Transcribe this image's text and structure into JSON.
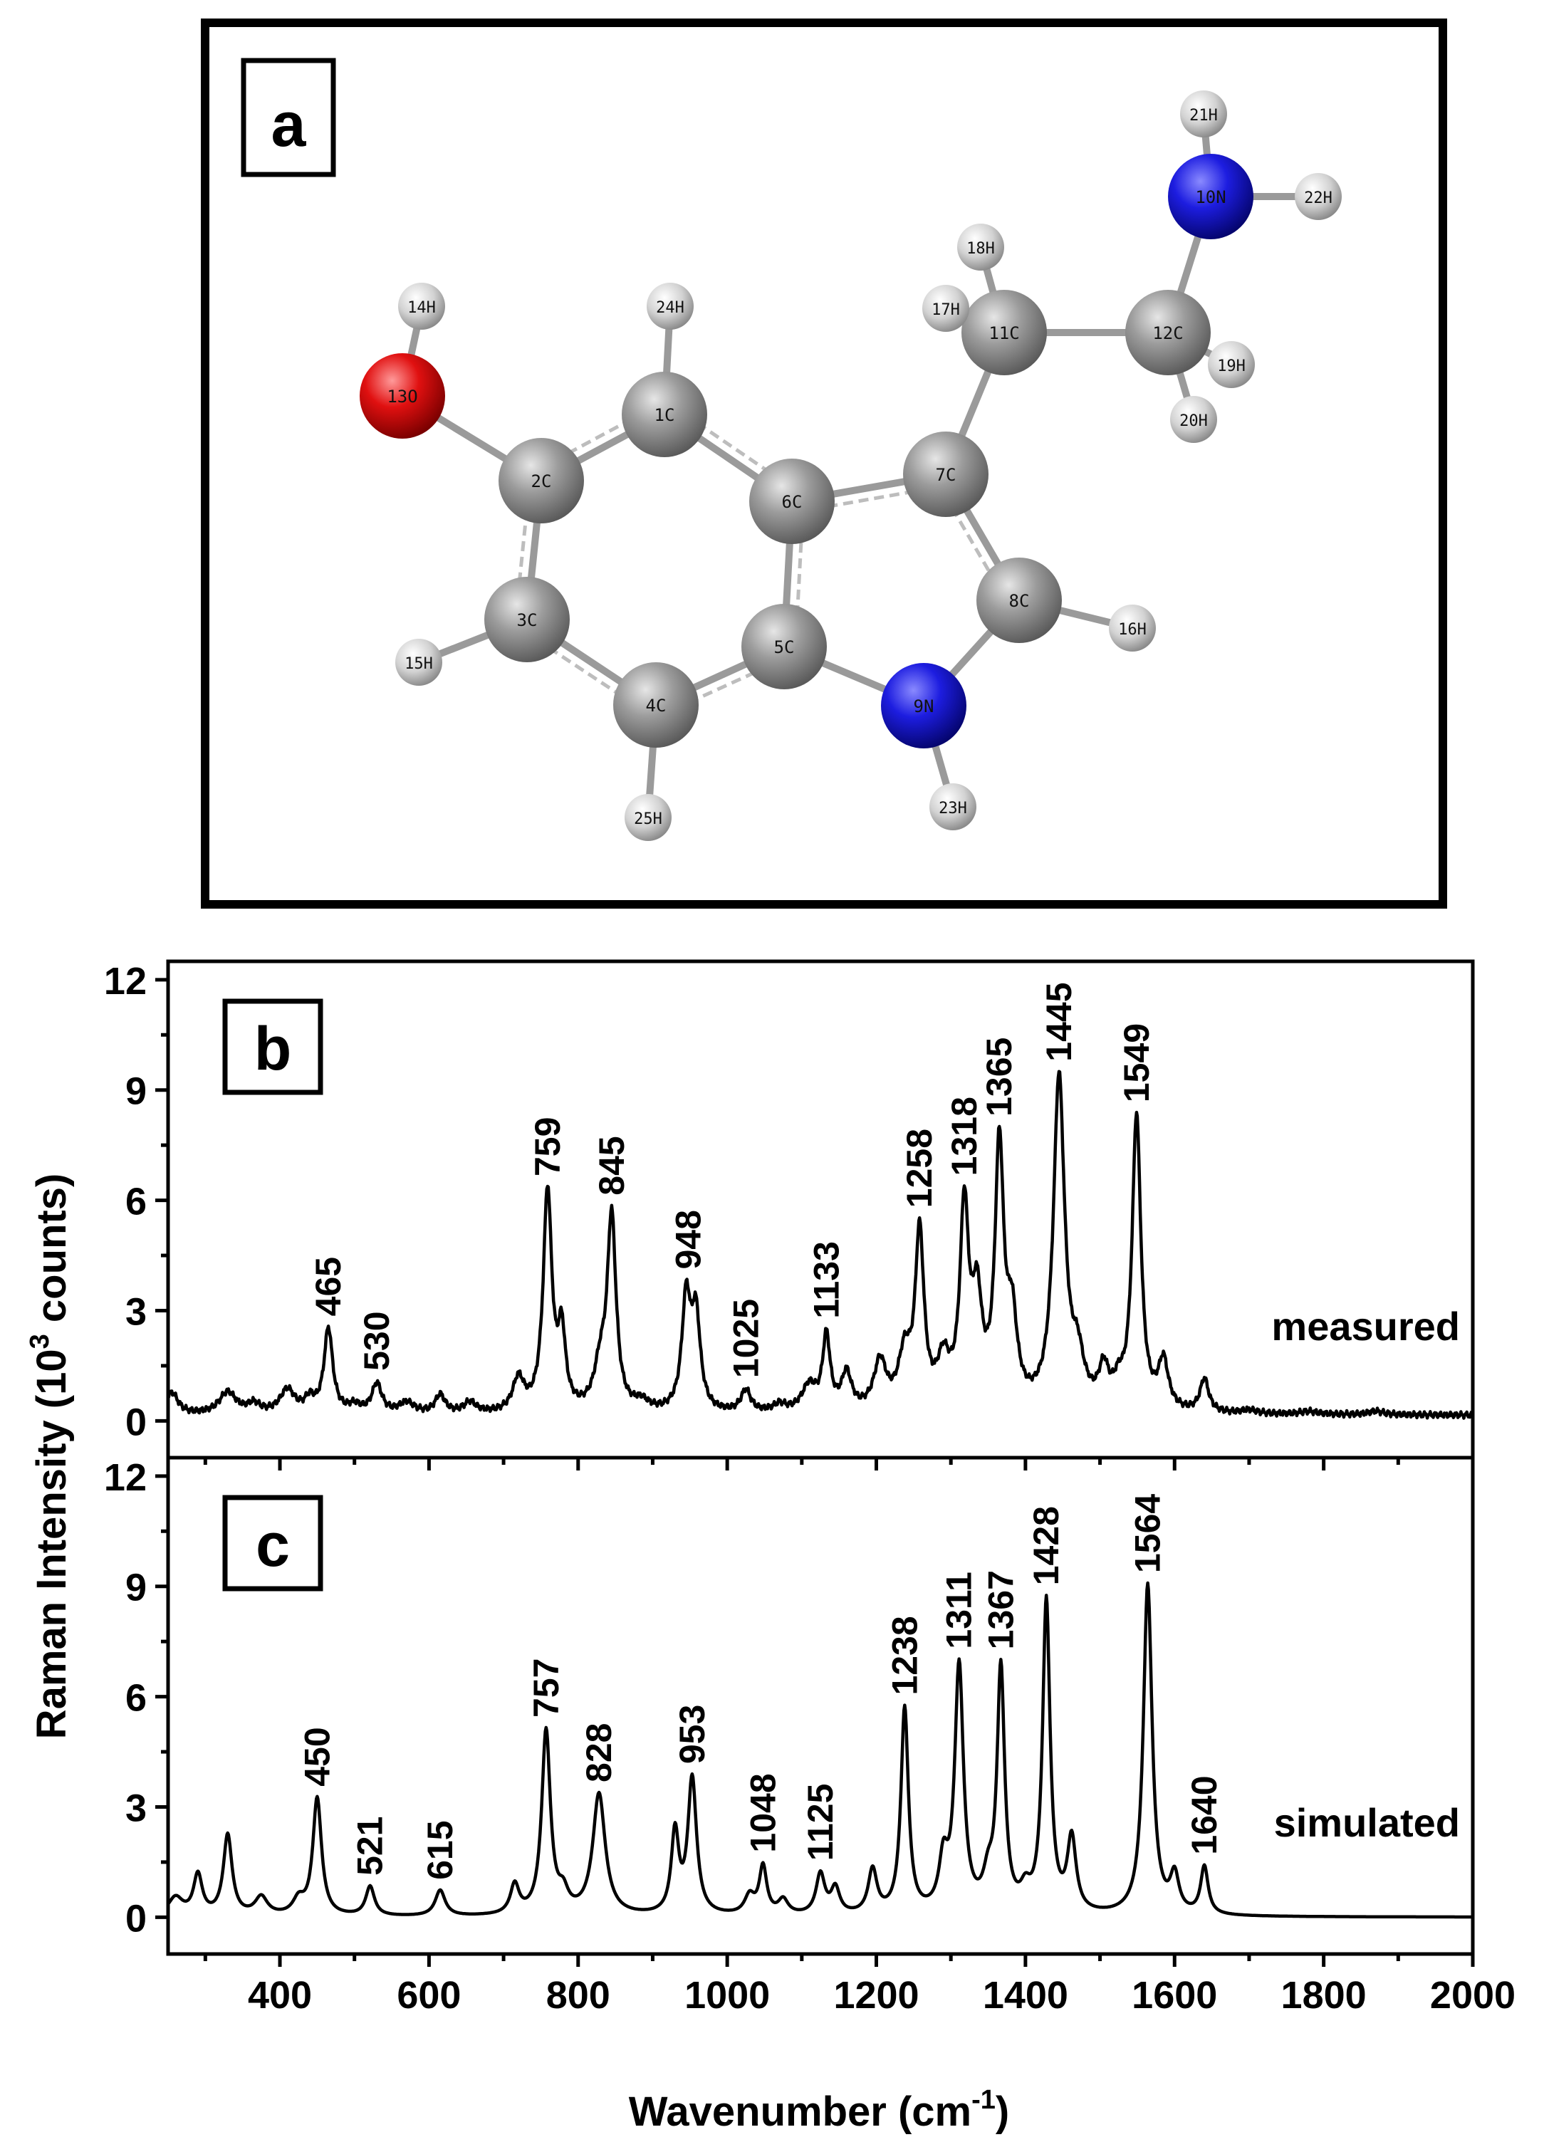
{
  "panel_a": {
    "label": "a",
    "colors": {
      "C": "#8c8c8c",
      "H": "#d6d6d6",
      "N": "#1a1ae6",
      "O": "#e60f0f",
      "bond": "#9a9a9a"
    },
    "atoms": [
      {
        "id": "1C",
        "el": "C"
      },
      {
        "id": "2C",
        "el": "C"
      },
      {
        "id": "3C",
        "el": "C"
      },
      {
        "id": "4C",
        "el": "C"
      },
      {
        "id": "5C",
        "el": "C"
      },
      {
        "id": "6C",
        "el": "C"
      },
      {
        "id": "7C",
        "el": "C"
      },
      {
        "id": "8C",
        "el": "C"
      },
      {
        "id": "9N",
        "el": "N"
      },
      {
        "id": "10N",
        "el": "N"
      },
      {
        "id": "11C",
        "el": "C"
      },
      {
        "id": "12C",
        "el": "C"
      },
      {
        "id": "13O",
        "el": "O"
      },
      {
        "id": "14H",
        "el": "H"
      },
      {
        "id": "15H",
        "el": "H"
      },
      {
        "id": "16H",
        "el": "H"
      },
      {
        "id": "17H",
        "el": "H"
      },
      {
        "id": "18H",
        "el": "H"
      },
      {
        "id": "19H",
        "el": "H"
      },
      {
        "id": "20H",
        "el": "H"
      },
      {
        "id": "21H",
        "el": "H"
      },
      {
        "id": "22H",
        "el": "H"
      },
      {
        "id": "23H",
        "el": "H"
      },
      {
        "id": "24H",
        "el": "H"
      },
      {
        "id": "25H",
        "el": "H"
      }
    ]
  },
  "chart_data": [
    {
      "type": "line",
      "panel_label": "b",
      "series_label": "measured",
      "xlim": [
        250,
        2000
      ],
      "ylim": [
        -1,
        12.5
      ],
      "yticks": [
        0,
        3,
        6,
        9,
        12
      ],
      "xticks": [
        400,
        600,
        800,
        1000,
        1200,
        1400,
        1600,
        1800,
        2000
      ],
      "baseline": 0.15,
      "peaks": [
        [
          255,
          0.6,
          10
        ],
        [
          330,
          0.6,
          14
        ],
        [
          365,
          0.25,
          10
        ],
        [
          410,
          0.65,
          12
        ],
        [
          440,
          0.35,
          8
        ],
        [
          465,
          2.3,
          7
        ],
        [
          500,
          0.2,
          10
        ],
        [
          530,
          0.8,
          8
        ],
        [
          570,
          0.3,
          12
        ],
        [
          615,
          0.5,
          8
        ],
        [
          655,
          0.3,
          10
        ],
        [
          720,
          0.9,
          9
        ],
        [
          759,
          6.0,
          7
        ],
        [
          778,
          2.0,
          6
        ],
        [
          830,
          1.1,
          10
        ],
        [
          845,
          5.2,
          7
        ],
        [
          885,
          0.25,
          12
        ],
        [
          945,
          3.0,
          7
        ],
        [
          958,
          2.5,
          7
        ],
        [
          1025,
          0.6,
          8
        ],
        [
          1070,
          0.2,
          10
        ],
        [
          1110,
          0.7,
          12
        ],
        [
          1133,
          2.0,
          6
        ],
        [
          1160,
          1.0,
          8
        ],
        [
          1205,
          1.3,
          10
        ],
        [
          1238,
          1.4,
          10
        ],
        [
          1258,
          4.7,
          7
        ],
        [
          1290,
          1.2,
          10
        ],
        [
          1318,
          5.3,
          7
        ],
        [
          1335,
          2.7,
          8
        ],
        [
          1365,
          7.0,
          7
        ],
        [
          1382,
          2.2,
          8
        ],
        [
          1445,
          9.0,
          9
        ],
        [
          1470,
          1.2,
          10
        ],
        [
          1505,
          1.0,
          8
        ],
        [
          1525,
          0.5,
          8
        ],
        [
          1549,
          8.0,
          7
        ],
        [
          1585,
          1.3,
          8
        ],
        [
          1640,
          0.9,
          7
        ],
        [
          1700,
          0.1,
          12
        ],
        [
          1780,
          0.08,
          15
        ],
        [
          1870,
          0.1,
          12
        ]
      ],
      "peak_labels": [
        465,
        530,
        759,
        845,
        948,
        1025,
        1133,
        1258,
        1318,
        1365,
        1445,
        1549
      ]
    },
    {
      "type": "line",
      "panel_label": "c",
      "series_label": "simulated",
      "xlim": [
        250,
        2000
      ],
      "ylim": [
        -1,
        12.5
      ],
      "yticks": [
        0,
        3,
        6,
        9,
        12
      ],
      "xticks": [
        400,
        600,
        800,
        1000,
        1200,
        1400,
        1600,
        1800,
        2000
      ],
      "baseline": 0.0,
      "peaks": [
        [
          260,
          0.5,
          12
        ],
        [
          290,
          1.1,
          7
        ],
        [
          330,
          2.2,
          7
        ],
        [
          375,
          0.5,
          10
        ],
        [
          425,
          0.4,
          9
        ],
        [
          450,
          3.2,
          7
        ],
        [
          521,
          0.8,
          7
        ],
        [
          615,
          0.7,
          8
        ],
        [
          715,
          0.8,
          7
        ],
        [
          757,
          5.0,
          7
        ],
        [
          780,
          0.5,
          8
        ],
        [
          828,
          3.3,
          10
        ],
        [
          930,
          2.2,
          6
        ],
        [
          953,
          3.7,
          7
        ],
        [
          1030,
          0.5,
          8
        ],
        [
          1048,
          1.3,
          6
        ],
        [
          1075,
          0.4,
          8
        ],
        [
          1125,
          1.1,
          7
        ],
        [
          1145,
          0.7,
          7
        ],
        [
          1195,
          1.2,
          7
        ],
        [
          1238,
          5.6,
          6
        ],
        [
          1290,
          1.3,
          7
        ],
        [
          1311,
          6.7,
          7
        ],
        [
          1350,
          0.8,
          8
        ],
        [
          1367,
          6.6,
          6
        ],
        [
          1400,
          0.5,
          8
        ],
        [
          1428,
          8.5,
          6
        ],
        [
          1462,
          2.0,
          7
        ],
        [
          1564,
          9.0,
          7
        ],
        [
          1600,
          1.0,
          7
        ],
        [
          1640,
          1.3,
          6
        ]
      ],
      "peak_labels": [
        450,
        521,
        615,
        757,
        828,
        953,
        1048,
        1125,
        1238,
        1311,
        1367,
        1428,
        1564,
        1640
      ]
    }
  ],
  "axes": {
    "x_label": "Wavenumber (cm-1)",
    "y_label": "Raman Intensity (103 counts)"
  }
}
